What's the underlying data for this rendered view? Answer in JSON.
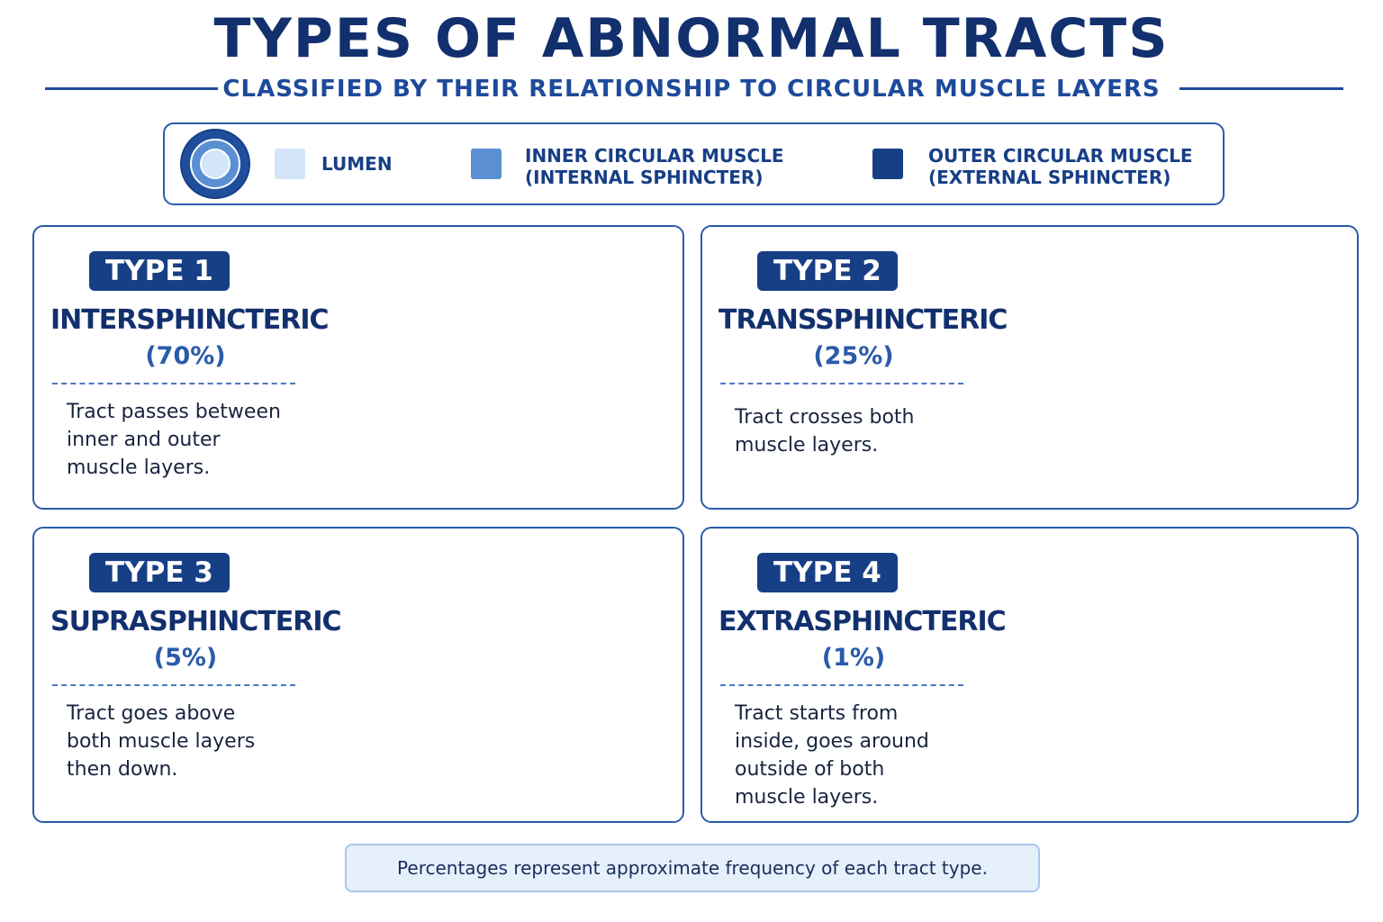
{
  "header": {
    "title": "TYPES OF ABNORMAL TRACTS",
    "subtitle": "CLASSIFIED BY THEIR RELATIONSHIP TO CIRCULAR MUSCLE LAYERS"
  },
  "legend": {
    "items": [
      {
        "lines": [
          "LUMEN"
        ]
      },
      {
        "lines": [
          "INNER CIRCULAR MUSCLE",
          "(INTERNAL SPHINCTER)"
        ]
      },
      {
        "lines": [
          "OUTER CIRCULAR MUSCLE",
          "(EXTERNAL SPHINCTER)"
        ]
      }
    ]
  },
  "cards": [
    {
      "badge": "TYPE 1",
      "name": "INTERSPHINCTERIC",
      "percent": "(70%)",
      "description": [
        "Tract passes between",
        "inner and outer",
        "muscle layers."
      ]
    },
    {
      "badge": "TYPE 2",
      "name": "TRANSSPHINCTERIC",
      "percent": "(25%)",
      "description": [
        "Tract crosses both",
        "muscle layers."
      ]
    },
    {
      "badge": "TYPE 3",
      "name": "SUPRASPHINCTERIC",
      "percent": "(5%)",
      "description": [
        "Tract goes above",
        "both muscle layers",
        "then down."
      ]
    },
    {
      "badge": "TYPE 4",
      "name": "EXTRASPHINCTERIC",
      "percent": "(1%)",
      "description": [
        "Tract starts from",
        "inside, goes around",
        "outside of both",
        "muscle layers."
      ]
    }
  ],
  "footer": {
    "note": "Percentages represent approximate frequency of each tract type."
  }
}
